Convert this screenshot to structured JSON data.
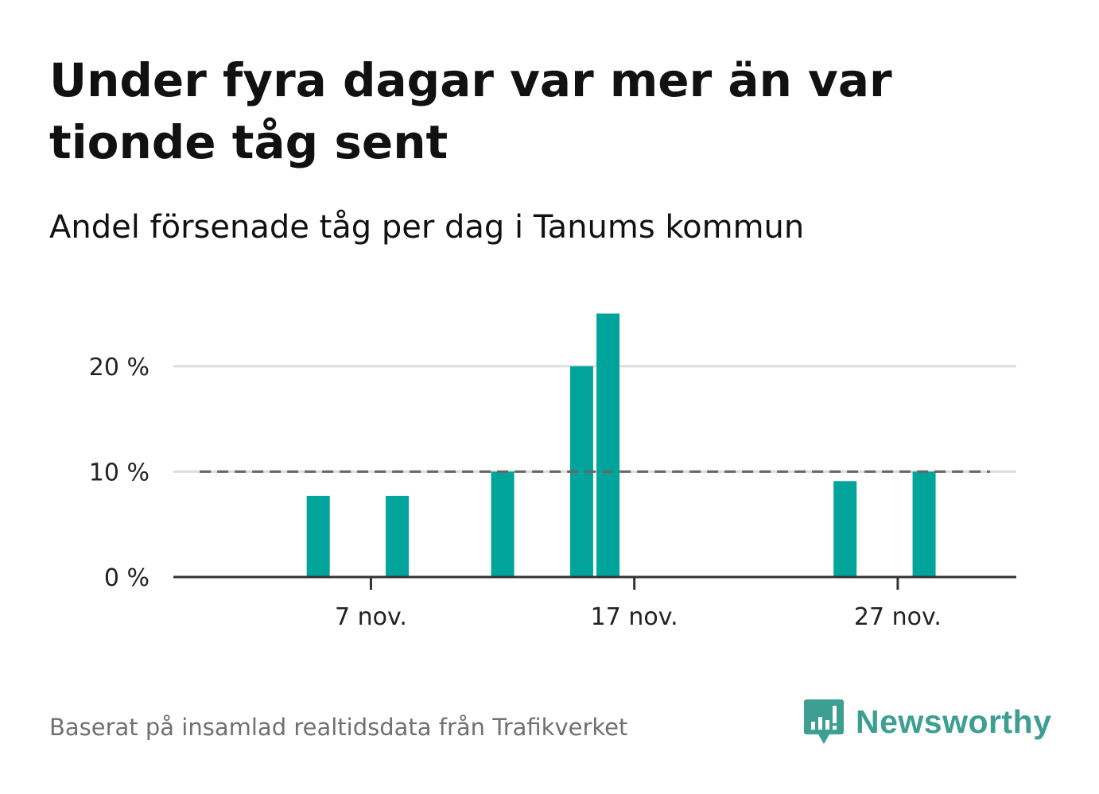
{
  "title": "Under fyra dagar var mer än var tionde tåg sent",
  "subtitle": "Andel försenade tåg per dag i Tanums kommun",
  "source": "Baserat på insamlad realtidsdata från Trafikverket",
  "brand": {
    "name": "Newsworthy",
    "color": "#3d9e92"
  },
  "colors": {
    "bar": "#00a49a",
    "reference_line": "#666666",
    "grid": "#dddddd",
    "axis": "#333333"
  },
  "chart_data": {
    "type": "bar",
    "title": "Andel försenade tåg per dag i Tanums kommun",
    "xlabel": "",
    "ylabel": "",
    "x": [
      "2021-11-05",
      "2021-11-08",
      "2021-11-12",
      "2021-11-15",
      "2021-11-16",
      "2021-11-25",
      "2021-11-28"
    ],
    "values": [
      7.7,
      7.7,
      10.0,
      20.0,
      25.0,
      9.1,
      10.0
    ],
    "reference_line": {
      "value": 10,
      "style": "dashed",
      "from": "2021-11-01",
      "to": "2021-11-30"
    },
    "ylim": [
      0,
      26
    ],
    "y_ticks": [
      {
        "value": 0,
        "label": "0 %"
      },
      {
        "value": 10,
        "label": "10 %"
      },
      {
        "value": 20,
        "label": "20 %"
      }
    ],
    "x_ticks": [
      {
        "date": "2021-11-07",
        "label": "7 nov."
      },
      {
        "date": "2021-11-17",
        "label": "17 nov."
      },
      {
        "date": "2021-11-27",
        "label": "27 nov."
      }
    ],
    "xlim": [
      "2021-10-31",
      "2021-12-02"
    ],
    "grid": true
  }
}
